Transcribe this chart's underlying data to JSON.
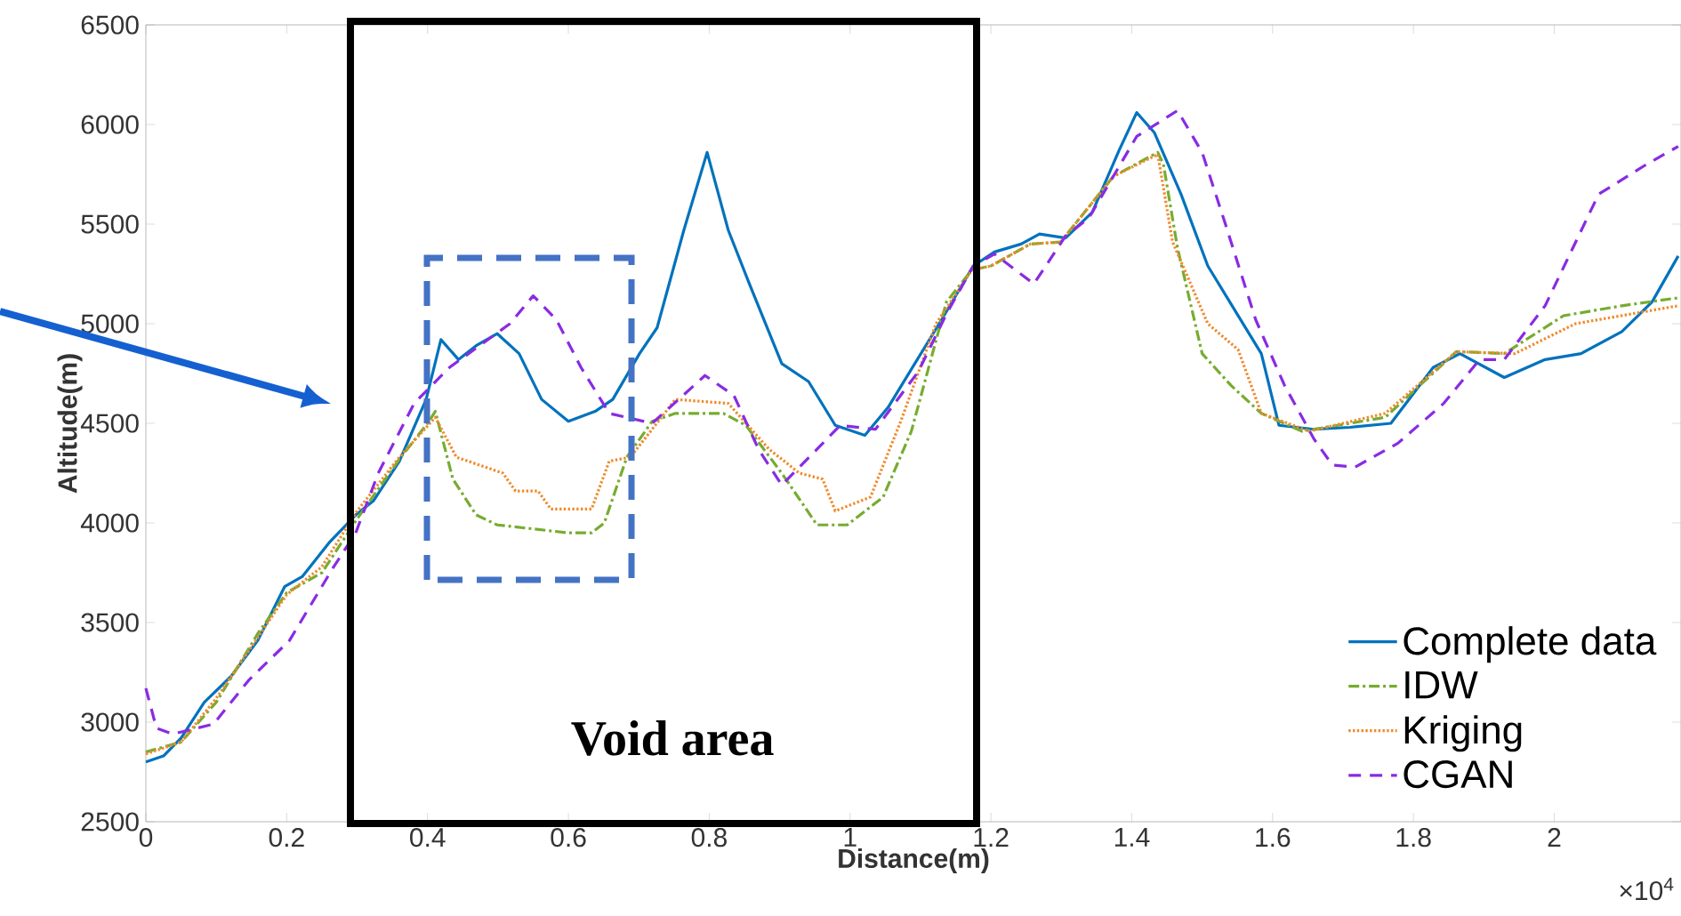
{
  "chart_data": {
    "type": "line",
    "xlabel": "Distance(m)",
    "ylabel": "Altitude(m)",
    "xlim": [
      0,
      2.18
    ],
    "xticks": [
      0,
      0.2,
      0.4,
      0.6,
      0.8,
      1,
      1.2,
      1.4,
      1.6,
      1.8,
      2
    ],
    "ylim": [
      2500,
      6500
    ],
    "yticks": [
      2500,
      3000,
      3500,
      4000,
      4500,
      5000,
      5500,
      6000,
      6500
    ],
    "legend": "bottom right",
    "grid": false,
    "annotations": [
      "Void area",
      "×10$^{4}$"
    ],
    "series": [
      {
        "name": "Complete data",
        "color": "#0072bd",
        "line_style": "solid",
        "x": [
          0,
          0.025,
          0.05,
          0.083,
          0.121,
          0.159,
          0.197,
          0.222,
          0.26,
          0.298,
          0.323,
          0.36,
          0.398,
          0.419,
          0.444,
          0.469,
          0.499,
          0.53,
          0.562,
          0.6,
          0.638,
          0.663,
          0.701,
          0.726,
          0.764,
          0.797,
          0.827,
          0.857,
          0.903,
          0.941,
          0.979,
          1.021,
          1.054,
          1.092,
          1.13,
          1.175,
          1.205,
          1.243,
          1.269,
          1.306,
          1.344,
          1.382,
          1.407,
          1.432,
          1.47,
          1.508,
          1.546,
          1.584,
          1.609,
          1.659,
          1.71,
          1.768,
          1.828,
          1.866,
          1.929,
          1.987,
          2.038,
          2.096,
          2.139,
          2.176
        ],
        "values": [
          2800,
          2830,
          2920,
          3100,
          3230,
          3410,
          3680,
          3730,
          3900,
          4040,
          4110,
          4310,
          4620,
          4920,
          4820,
          4890,
          4950,
          4850,
          4620,
          4510,
          4560,
          4620,
          4850,
          4980,
          5470,
          5860,
          5470,
          5200,
          4800,
          4710,
          4490,
          4440,
          4580,
          4800,
          5020,
          5290,
          5360,
          5400,
          5450,
          5430,
          5560,
          5870,
          6060,
          5960,
          5650,
          5290,
          5070,
          4850,
          4490,
          4470,
          4480,
          4500,
          4780,
          4850,
          4730,
          4820,
          4850,
          4960,
          5110,
          5340
        ]
      },
      {
        "name": "IDW",
        "color": "#77ac30",
        "line_style": "dashdot",
        "x": [
          0,
          0.05,
          0.1,
          0.16,
          0.2,
          0.25,
          0.3,
          0.36,
          0.4,
          0.411,
          0.436,
          0.469,
          0.499,
          0.55,
          0.6,
          0.633,
          0.651,
          0.683,
          0.719,
          0.752,
          0.82,
          0.852,
          0.903,
          0.953,
          0.996,
          1.047,
          1.087,
          1.137,
          1.173,
          1.2,
          1.256,
          1.299,
          1.374,
          1.437,
          1.445,
          1.465,
          1.5,
          1.541,
          1.584,
          1.642,
          1.76,
          1.861,
          1.929,
          2.013,
          2.096,
          2.176
        ],
        "values": [
          2850,
          2900,
          3100,
          3450,
          3650,
          3750,
          4020,
          4320,
          4500,
          4560,
          4220,
          4040,
          3990,
          3970,
          3950,
          3950,
          4000,
          4330,
          4510,
          4550,
          4550,
          4490,
          4250,
          3990,
          3990,
          4130,
          4460,
          5110,
          5270,
          5290,
          5400,
          5410,
          5740,
          5860,
          5800,
          5380,
          4850,
          4690,
          4550,
          4460,
          4530,
          4860,
          4850,
          5040,
          5090,
          5130
        ]
      },
      {
        "name": "Kriging",
        "color": "#f08a2c",
        "line_style": "dotted",
        "x": [
          0,
          0.05,
          0.1,
          0.16,
          0.2,
          0.25,
          0.3,
          0.36,
          0.411,
          0.441,
          0.474,
          0.507,
          0.525,
          0.557,
          0.575,
          0.633,
          0.658,
          0.688,
          0.752,
          0.827,
          0.885,
          0.928,
          0.961,
          0.979,
          1.029,
          1.072,
          1.122,
          1.173,
          1.2,
          1.256,
          1.299,
          1.374,
          1.437,
          1.458,
          1.508,
          1.551,
          1.584,
          1.652,
          1.76,
          1.861,
          1.944,
          2.03,
          2.176
        ],
        "values": [
          2840,
          2900,
          3120,
          3430,
          3640,
          3780,
          4060,
          4330,
          4530,
          4330,
          4290,
          4250,
          4160,
          4160,
          4070,
          4070,
          4310,
          4330,
          4620,
          4600,
          4370,
          4250,
          4220,
          4060,
          4130,
          4510,
          5000,
          5270,
          5290,
          5400,
          5410,
          5740,
          5850,
          5410,
          5000,
          4870,
          4550,
          4460,
          4550,
          4860,
          4850,
          5000,
          5090
        ]
      },
      {
        "name": "CGAN",
        "color": "#8a2be2",
        "line_style": "dashed",
        "x": [
          0,
          0.015,
          0.038,
          0.096,
          0.146,
          0.204,
          0.265,
          0.298,
          0.33,
          0.381,
          0.431,
          0.517,
          0.55,
          0.583,
          0.618,
          0.658,
          0.719,
          0.794,
          0.835,
          0.87,
          0.903,
          0.953,
          0.986,
          1.036,
          1.097,
          1.137,
          1.175,
          1.205,
          1.261,
          1.306,
          1.339,
          1.407,
          1.465,
          1.5,
          1.533,
          1.576,
          1.617,
          1.659,
          1.685,
          1.717,
          1.778,
          1.843,
          1.894,
          1.929,
          1.987,
          2.063,
          2.131,
          2.176
        ],
        "values": [
          3170,
          2970,
          2940,
          2990,
          3210,
          3410,
          3770,
          3950,
          4250,
          4600,
          4780,
          5000,
          5140,
          5020,
          4780,
          4550,
          4500,
          4740,
          4640,
          4370,
          4190,
          4370,
          4490,
          4470,
          4760,
          5050,
          5290,
          5350,
          5200,
          5440,
          5530,
          5940,
          6070,
          5860,
          5500,
          5020,
          4690,
          4420,
          4290,
          4280,
          4400,
          4600,
          4820,
          4820,
          5090,
          5650,
          5800,
          5890
        ]
      }
    ]
  }
}
